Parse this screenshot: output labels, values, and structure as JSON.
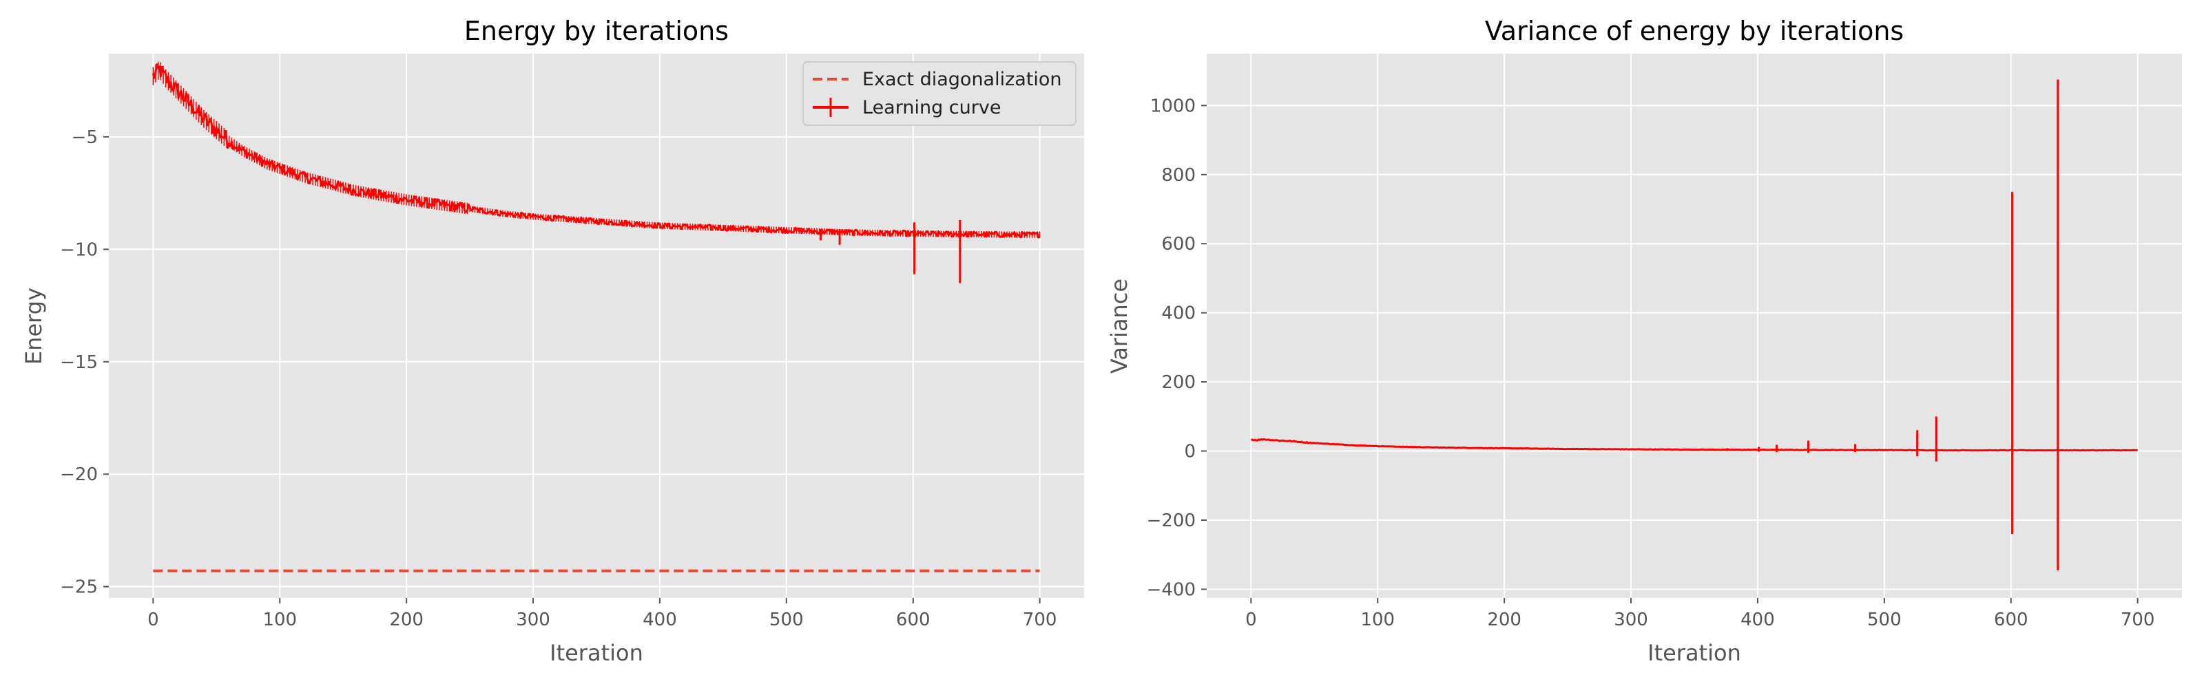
{
  "chart_data": [
    {
      "type": "line",
      "title": "Energy by iterations",
      "xlabel": "Iteration",
      "ylabel": "Energy",
      "xlim": [
        -35,
        735
      ],
      "ylim": [
        -25.5,
        -1.3
      ],
      "xticks": [
        0,
        100,
        200,
        300,
        400,
        500,
        600,
        700
      ],
      "yticks": [
        -25,
        -20,
        -15,
        -10,
        -5
      ],
      "grid": true,
      "legend_position": "top-right",
      "colors": {
        "exact": "#e24a33",
        "learning": "#ff0000"
      },
      "series": [
        {
          "name": "Exact diagonalization",
          "style": "dashed",
          "x": [
            0,
            700
          ],
          "y": [
            -24.3,
            -24.3
          ]
        },
        {
          "name": "Learning curve",
          "style": "errorbar",
          "x": [
            0,
            5,
            10,
            20,
            30,
            40,
            50,
            60,
            70,
            80,
            90,
            100,
            120,
            140,
            160,
            180,
            200,
            225,
            250,
            275,
            300,
            325,
            350,
            375,
            400,
            425,
            450,
            475,
            500,
            525,
            550,
            575,
            600,
            625,
            650,
            675,
            700
          ],
          "y": [
            -2.3,
            -2.0,
            -2.4,
            -3.0,
            -3.6,
            -4.2,
            -4.7,
            -5.2,
            -5.6,
            -5.9,
            -6.2,
            -6.4,
            -6.8,
            -7.1,
            -7.4,
            -7.6,
            -7.8,
            -8.0,
            -8.2,
            -8.4,
            -8.55,
            -8.65,
            -8.75,
            -8.85,
            -8.95,
            -9.0,
            -9.05,
            -9.1,
            -9.15,
            -9.2,
            -9.25,
            -9.28,
            -9.3,
            -9.32,
            -9.33,
            -9.35,
            -9.35
          ],
          "spikes": [
            {
              "x": 527,
              "low": -9.6,
              "high": -9.1
            },
            {
              "x": 542,
              "low": -9.8,
              "high": -9.1
            },
            {
              "x": 601,
              "low": -11.1,
              "high": -8.8
            },
            {
              "x": 637,
              "low": -11.5,
              "high": -8.7
            }
          ]
        }
      ]
    },
    {
      "type": "line",
      "title": "Variance of energy by iterations",
      "xlabel": "Iteration",
      "ylabel": "Variance",
      "xlim": [
        -35,
        735
      ],
      "ylim": [
        -425,
        1150
      ],
      "xticks": [
        0,
        100,
        200,
        300,
        400,
        500,
        600,
        700
      ],
      "yticks": [
        -400,
        -200,
        0,
        200,
        400,
        600,
        800,
        1000
      ],
      "grid": true,
      "colors": {
        "line": "#ff0000"
      },
      "series": [
        {
          "style": "line",
          "x": [
            0,
            5,
            10,
            20,
            30,
            40,
            50,
            60,
            80,
            100,
            125,
            150,
            175,
            200,
            250,
            300,
            350,
            400,
            450,
            500,
            550,
            600,
            650,
            700
          ],
          "y": [
            33,
            32,
            34,
            31,
            29,
            26,
            23,
            21,
            17,
            14,
            12,
            10,
            9,
            8,
            6,
            5,
            4,
            3.5,
            3,
            2.5,
            2,
            2,
            2,
            2
          ],
          "spikes": [
            {
              "x": 376,
              "low": 0,
              "high": 8
            },
            {
              "x": 401,
              "low": -2,
              "high": 12
            },
            {
              "x": 415,
              "low": -3,
              "high": 18
            },
            {
              "x": 440,
              "low": -5,
              "high": 30
            },
            {
              "x": 477,
              "low": -3,
              "high": 20
            },
            {
              "x": 526,
              "low": -15,
              "high": 60
            },
            {
              "x": 541,
              "low": -30,
              "high": 100
            },
            {
              "x": 601,
              "low": -240,
              "high": 750
            },
            {
              "x": 637,
              "low": -345,
              "high": 1075
            }
          ]
        }
      ]
    }
  ]
}
